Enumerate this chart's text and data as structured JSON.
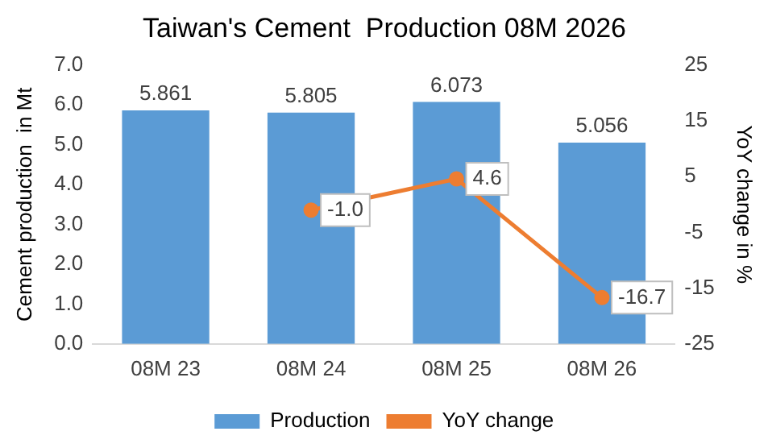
{
  "chart_data": {
    "type": "bar",
    "title": "Taiwan's Cement  Production 08M 2026",
    "ylabel": "Cement production  in Mt",
    "y2label": "YoY change in %",
    "categories": [
      "08M 23",
      "08M 24",
      "08M 25",
      "08M 26"
    ],
    "series": [
      {
        "name": "Production",
        "color": "#5b9bd5",
        "values": [
          5.861,
          5.805,
          6.073,
          5.056
        ],
        "value_labels": [
          "5.861",
          "5.805",
          "6.073",
          "5.056"
        ]
      },
      {
        "name": "YoY change",
        "type": "line",
        "axis": "y2",
        "color": "#ed7d31",
        "marker": "circle",
        "values": [
          null,
          -1.0,
          4.6,
          -16.7
        ],
        "value_labels": [
          null,
          "-1.0",
          "4.6",
          "-16.7"
        ]
      }
    ],
    "ylim": [
      0,
      7
    ],
    "yticks": [
      {
        "value": 0,
        "label": "0.0"
      },
      {
        "value": 1,
        "label": "1.0"
      },
      {
        "value": 2,
        "label": "2.0"
      },
      {
        "value": 3,
        "label": "3.0"
      },
      {
        "value": 4,
        "label": "4.0"
      },
      {
        "value": 5,
        "label": "5.0"
      },
      {
        "value": 6,
        "label": "6.0"
      },
      {
        "value": 7,
        "label": "7.0"
      }
    ],
    "y2lim": [
      -25,
      25
    ],
    "y2ticks": [
      -25,
      -15,
      -5,
      5,
      15,
      25
    ],
    "grid": false,
    "legend": "bottom"
  }
}
